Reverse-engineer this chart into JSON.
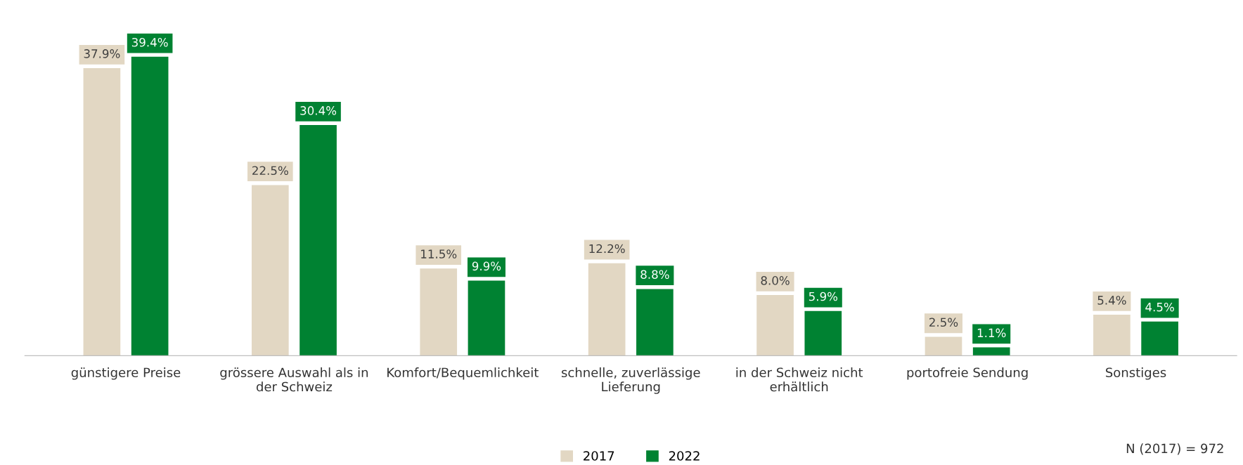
{
  "chart_data": {
    "type": "bar",
    "categories": [
      "günstigere Preise",
      "grössere Auswahl als in\nder Schweiz",
      "Komfort/Bequemlichkeit",
      "schnelle, zuverlässige\nLieferung",
      "in der Schweiz nicht\nerhältlich",
      "portofreie Sendung",
      "Sonstiges"
    ],
    "series": [
      {
        "name": "2017",
        "color": "#e2d7c3",
        "values": [
          37.9,
          22.5,
          11.5,
          12.2,
          8.0,
          2.5,
          5.4
        ],
        "value_labels": [
          "37.9%",
          "22.5%",
          "11.5%",
          "12.2%",
          "8.0%",
          "2.5%",
          "5.4%"
        ]
      },
      {
        "name": "2022",
        "color": "#008232",
        "values": [
          39.4,
          30.4,
          9.9,
          8.8,
          5.9,
          1.1,
          4.5
        ],
        "value_labels": [
          "39.4%",
          "30.4%",
          "9.9%",
          "8.8%",
          "5.9%",
          "1.1%",
          "4.5%"
        ]
      }
    ],
    "legend": "bottom",
    "grid": false,
    "annotations": [
      "N (2017) = 972"
    ]
  }
}
